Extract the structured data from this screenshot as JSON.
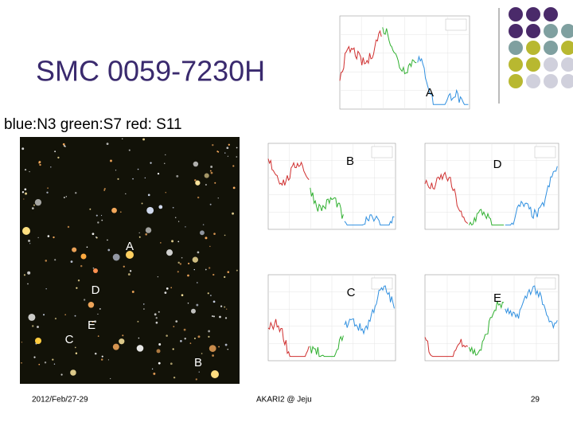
{
  "title": "SMC 0059-7230H",
  "subtitle": "blue:N3 green:S7 red: S11",
  "image_labels": [
    "A",
    "D",
    "E",
    "C",
    "B"
  ],
  "spectra": [
    {
      "label": "A"
    },
    {
      "label": "B"
    },
    {
      "label": "D"
    },
    {
      "label": "C"
    },
    {
      "label": "E"
    }
  ],
  "footer": {
    "date": "2012/Feb/27-29",
    "event": "AKARI2 @ Jeju",
    "page": "29"
  }
}
